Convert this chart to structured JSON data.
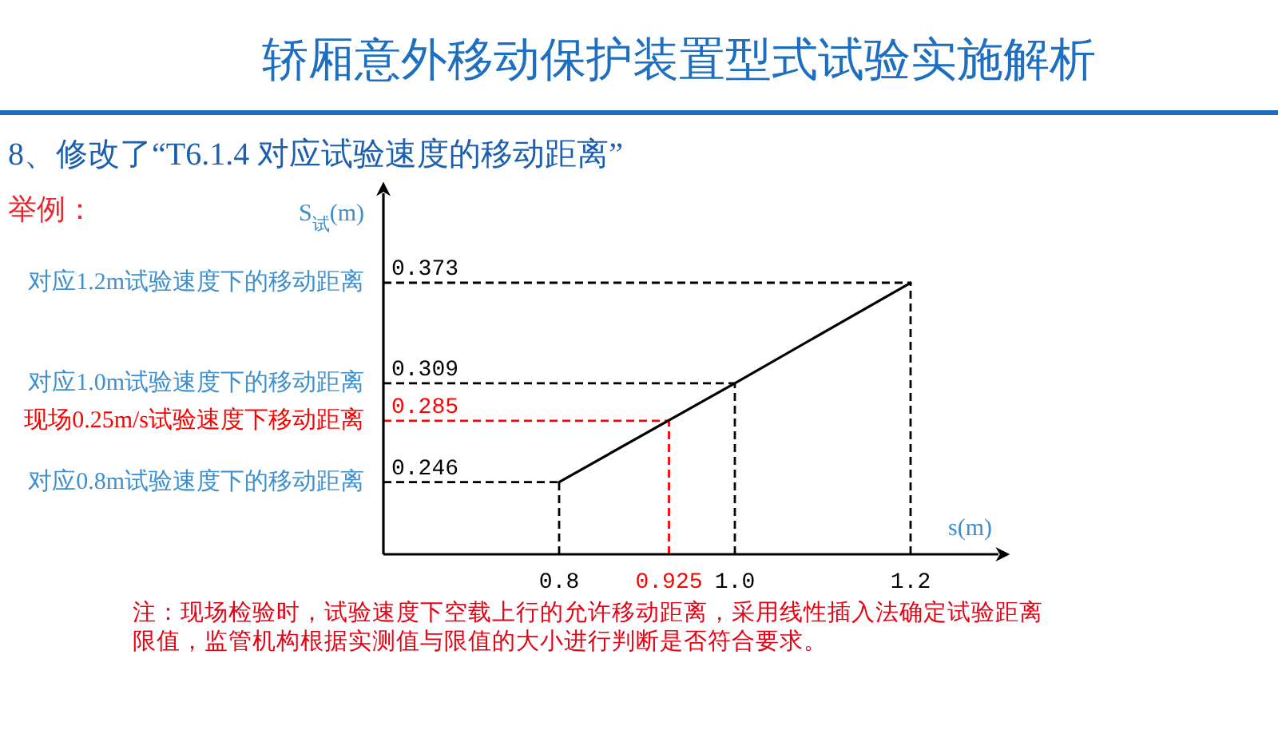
{
  "chart_data": {
    "type": "line",
    "title": "轿厢意外移动保护装置型式试验实施解析",
    "subtitle": "8、修改了“T6.1.4 对应试验速度的移动距离”",
    "xlabel": "s(m)",
    "ylabel": "S$_{试}$(m)",
    "annotations": [
      "举例：",
      "注：现场检验时，试验速度下空载上行的允许移动距离，采用线性插入法确定试验距离限值，监管机构根据实测值与限值的大小进行判断是否符合要求。"
    ],
    "x": [
      0.8,
      1.0,
      1.2
    ],
    "series": [
      {
        "color": "#000000",
        "values": [
          0.246,
          0.309,
          0.373
        ]
      }
    ],
    "xlim": [
      0.6,
      1.3
    ],
    "ylim": [
      0.2,
      0.43
    ],
    "xticks": [
      0.8,
      0.925,
      {
        "value": 1,
        "label": "1.0"
      },
      1.2
    ],
    "yticks": [
      0.246,
      0.285,
      0.309,
      0.373
    ],
    "ref_lines": [
      {
        "axis": "y",
        "value": 0.373,
        "label": "对应1.2m试验速度下的移动距离",
        "color": "#000000",
        "line_style": "dashed"
      },
      {
        "axis": "y",
        "value": 0.309,
        "label": "对应1.0m试验速度下的移动距离",
        "color": "#000000",
        "line_style": "dashed"
      },
      {
        "axis": "y",
        "value": 0.285,
        "label": "现场0.25m/s试验速度下移动距离",
        "color": "#ff0000",
        "line_style": "dashed"
      },
      {
        "axis": "y",
        "value": 0.246,
        "label": "对应0.8m试验速度下的移动距离",
        "color": "#000000",
        "line_style": "dashed"
      },
      {
        "axis": "x",
        "value": 0.8,
        "color": "#000000",
        "line_style": "dashed"
      },
      {
        "axis": "x",
        "value": 0.925,
        "color": "#ff0000",
        "line_style": "dashed"
      },
      {
        "axis": "x",
        "value": 1,
        "color": "#000000",
        "line_style": "dashed"
      },
      {
        "axis": "x",
        "value": 1.2,
        "color": "#000000",
        "line_style": "dashed"
      }
    ],
    "marker": "none",
    "line_style": "solid"
  }
}
